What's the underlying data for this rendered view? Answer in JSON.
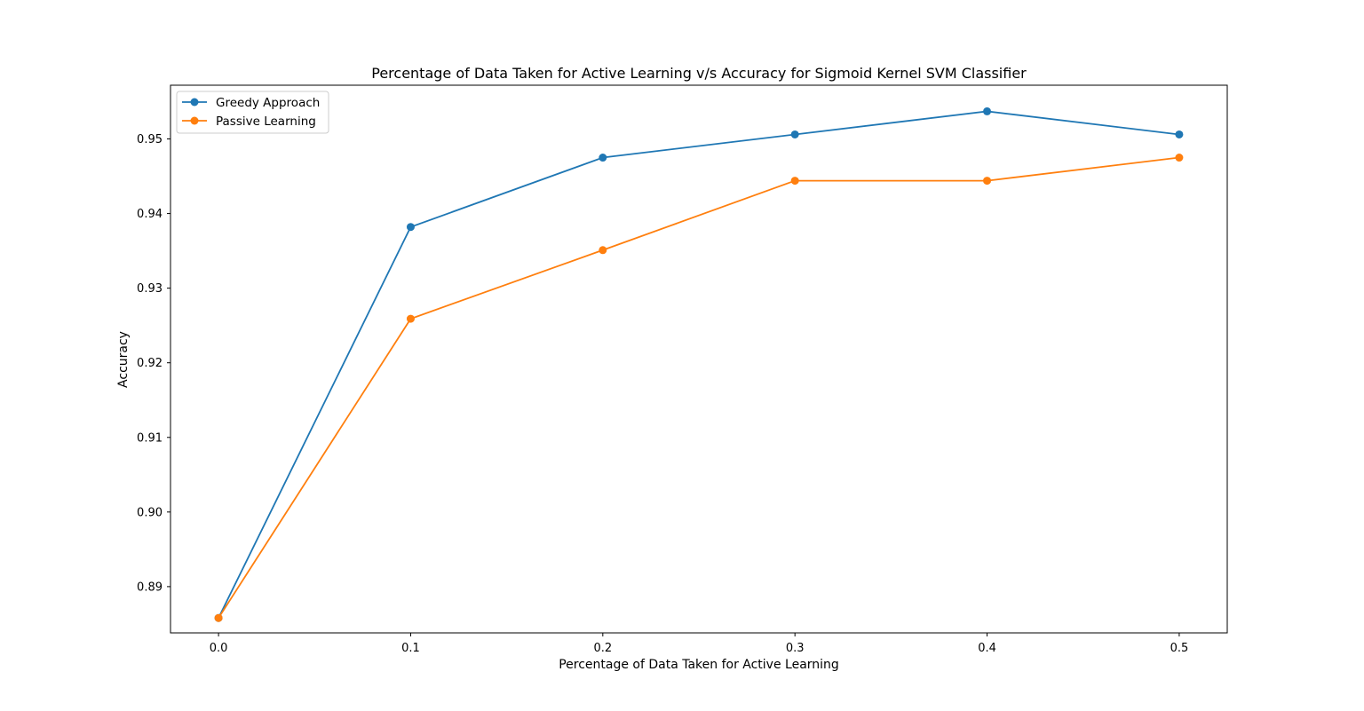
{
  "chart_data": {
    "type": "line",
    "title": "Percentage of Data Taken for Active Learning v/s Accuracy for Sigmoid Kernel SVM Classifier",
    "xlabel": "Percentage of Data Taken for Active Learning",
    "ylabel": "Accuracy",
    "x": [
      0.0,
      0.1,
      0.2,
      0.3,
      0.4,
      0.5
    ],
    "xlim": [
      -0.025,
      0.525
    ],
    "ylim": [
      0.8838,
      0.9572
    ],
    "x_ticks": [
      "0.0",
      "0.1",
      "0.2",
      "0.3",
      "0.4",
      "0.5"
    ],
    "y_ticks": [
      "0.89",
      "0.90",
      "0.91",
      "0.92",
      "0.93",
      "0.94",
      "0.95"
    ],
    "grid": false,
    "legend_position": "top-left",
    "series": [
      {
        "name": "Greedy Approach",
        "color": "#1f77b4",
        "marker": "circle",
        "values": [
          0.8858,
          0.9382,
          0.9475,
          0.9506,
          0.9537,
          0.9506
        ]
      },
      {
        "name": "Passive Learning",
        "color": "#ff7f0e",
        "marker": "circle",
        "values": [
          0.8858,
          0.9259,
          0.9351,
          0.9444,
          0.9444,
          0.9475
        ]
      }
    ]
  }
}
